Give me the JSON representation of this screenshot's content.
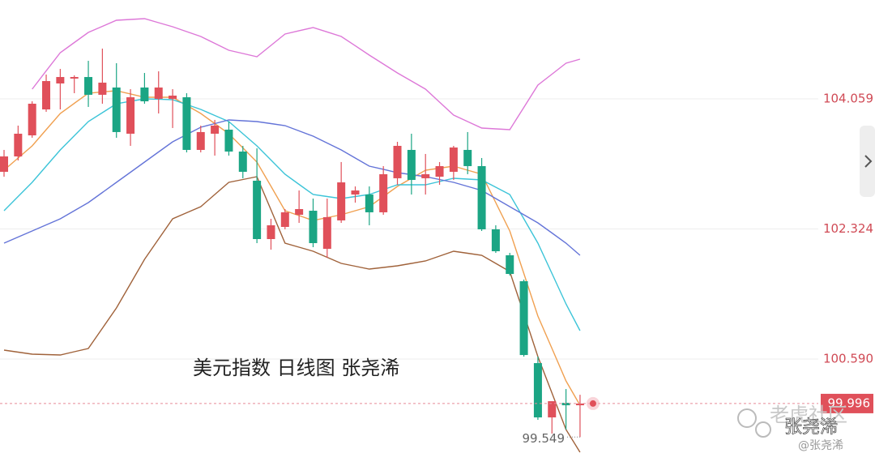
{
  "chart_data": {
    "type": "candlestick",
    "categories": [
      null,
      null,
      null,
      null,
      null,
      null,
      null,
      null,
      null,
      null,
      null,
      null,
      null,
      null,
      null,
      null,
      null,
      null,
      null,
      null,
      null,
      null,
      null,
      null,
      null,
      null,
      null,
      null,
      null,
      null,
      null,
      null,
      null,
      null,
      null,
      null,
      null,
      null,
      null,
      null,
      null,
      null
    ],
    "open": [
      103.086,
      103.291,
      103.572,
      103.918,
      104.264,
      104.329,
      104.35,
      104.113,
      104.21,
      103.594,
      104.21,
      104.059,
      104.059,
      104.08,
      103.378,
      103.594,
      103.648,
      103.356,
      102.967,
      102.189,
      102.351,
      102.513,
      102.567,
      102.059,
      102.438,
      102.783,
      102.783,
      102.546,
      103.0,
      103.378,
      103.0,
      103.021,
      103.086,
      103.378,
      103.162,
      102.319,
      101.973,
      101.627,
      100.535,
      99.811,
      100.005,
      99.973
    ],
    "high": [
      103.378,
      103.702,
      104.026,
      104.383,
      104.458,
      104.372,
      104.566,
      104.729,
      104.534,
      104.188,
      104.404,
      104.426,
      104.188,
      104.134,
      103.702,
      103.778,
      103.756,
      103.432,
      103.399,
      102.459,
      102.589,
      102.837,
      102.729,
      102.729,
      103.216,
      102.891,
      102.891,
      103.162,
      103.486,
      103.594,
      103.324,
      103.216,
      103.432,
      103.616,
      103.27,
      102.373,
      102.005,
      101.649,
      100.622,
      100.027,
      100.189,
      100.113
    ],
    "low": [
      103.021,
      103.237,
      103.54,
      103.886,
      103.918,
      104.134,
      103.951,
      103.994,
      103.54,
      103.432,
      103.994,
      103.864,
      103.67,
      103.345,
      103.345,
      103.302,
      103.302,
      103.0,
      102.135,
      102.048,
      102.319,
      102.405,
      102.081,
      101.94,
      102.405,
      102.675,
      102.373,
      102.513,
      102.913,
      102.783,
      102.783,
      102.913,
      102.978,
      103.054,
      102.297,
      102.005,
      101.703,
      100.622,
      99.779,
      99.595,
      99.649,
      99.549
    ],
    "close": [
      103.291,
      103.594,
      103.994,
      104.296,
      104.35,
      104.35,
      104.113,
      104.275,
      103.616,
      104.08,
      104.026,
      104.21,
      104.102,
      103.378,
      103.616,
      103.702,
      103.356,
      103.086,
      102.189,
      102.373,
      102.546,
      102.589,
      102.135,
      102.481,
      102.945,
      102.837,
      102.546,
      103.054,
      103.432,
      102.978,
      103.054,
      103.162,
      103.41,
      103.162,
      102.319,
      102.027,
      101.724,
      100.643,
      99.811,
      100.027,
      99.973,
      99.996
    ],
    "up_color": "#e0505a",
    "down_color": "#1ba584",
    "series": [
      {
        "color": "#f0a050",
        "values": [
          103.108,
          103.27,
          103.432,
          103.648,
          103.864,
          103.999,
          104.134,
          104.151,
          104.167,
          104.124,
          104.08,
          104.08,
          104.08,
          103.972,
          103.864,
          103.729,
          103.594,
          103.405,
          103.216,
          102.892,
          102.567,
          102.502,
          102.437,
          102.475,
          102.513,
          102.567,
          102.621,
          102.756,
          102.891,
          103.0,
          103.108,
          103.135,
          103.162,
          103.108,
          103.053,
          102.675,
          102.297,
          101.73,
          101.162,
          100.73,
          100.298,
          99.973
        ]
      },
      {
        "color": "#3cc4d8",
        "values": [
          102.567,
          102.756,
          102.945,
          103.162,
          103.378,
          103.567,
          103.756,
          103.875,
          103.994,
          104.027,
          104.059,
          104.054,
          104.048,
          103.983,
          103.918,
          103.837,
          103.756,
          103.594,
          103.432,
          103.243,
          103.053,
          102.918,
          102.783,
          102.756,
          102.729,
          102.756,
          102.783,
          102.848,
          102.913,
          102.913,
          102.913,
          102.956,
          102.999,
          102.989,
          102.978,
          102.881,
          102.783,
          102.459,
          102.135,
          101.73,
          101.324,
          100.968
        ]
      },
      {
        "color": "#6474d8",
        "values": [
          102.135,
          102.216,
          102.297,
          102.378,
          102.459,
          102.567,
          102.675,
          102.81,
          102.945,
          103.081,
          103.216,
          103.351,
          103.486,
          103.583,
          103.68,
          103.729,
          103.778,
          103.767,
          103.756,
          103.729,
          103.702,
          103.632,
          103.561,
          103.47,
          103.378,
          103.27,
          103.162,
          103.119,
          103.075,
          103.048,
          103.021,
          102.983,
          102.945,
          102.891,
          102.837,
          102.729,
          102.621,
          102.513,
          102.405,
          102.27,
          102.135,
          101.973
        ]
      },
      {
        "color": "#dd78d8",
        "values": [
          null,
          null,
          104.188,
          104.432,
          104.675,
          104.81,
          104.945,
          105.026,
          105.107,
          105.118,
          105.128,
          105.074,
          105.02,
          104.956,
          104.891,
          104.799,
          104.707,
          104.664,
          104.621,
          104.772,
          104.923,
          104.967,
          105.01,
          104.951,
          104.891,
          104.767,
          104.642,
          104.523,
          104.404,
          104.296,
          104.188,
          104.015,
          103.842,
          103.756,
          103.669,
          103.659,
          103.648,
          103.945,
          104.242,
          104.388,
          104.534,
          104.588
        ]
      },
      {
        "color": "#a0623a",
        "values": [
          100.708,
          100.681,
          100.654,
          100.649,
          100.644,
          100.687,
          100.73,
          101.0,
          101.27,
          101.595,
          101.919,
          102.189,
          102.459,
          102.54,
          102.621,
          102.783,
          102.945,
          102.983,
          103.021,
          102.578,
          102.135,
          102.081,
          102.027,
          101.946,
          101.865,
          101.827,
          101.789,
          101.811,
          101.832,
          101.865,
          101.897,
          101.962,
          102.027,
          102.0,
          101.973,
          101.865,
          101.757,
          101.19,
          100.622,
          100.136,
          99.649,
          99.347
        ]
      }
    ],
    "ylim": [
      99.163,
      105.377
    ],
    "yticks": [
      104.059,
      102.324,
      {
        "value": 100.59,
        "label": "100.590"
      }
    ],
    "grid": true,
    "price_line": 99.996,
    "low_label": 99.549,
    "annotation": "美元指数  日线图  张尧浠",
    "watermark": {
      "brand": "老虎社区",
      "author": "张尧浠",
      "handle": "@张尧浠"
    }
  }
}
